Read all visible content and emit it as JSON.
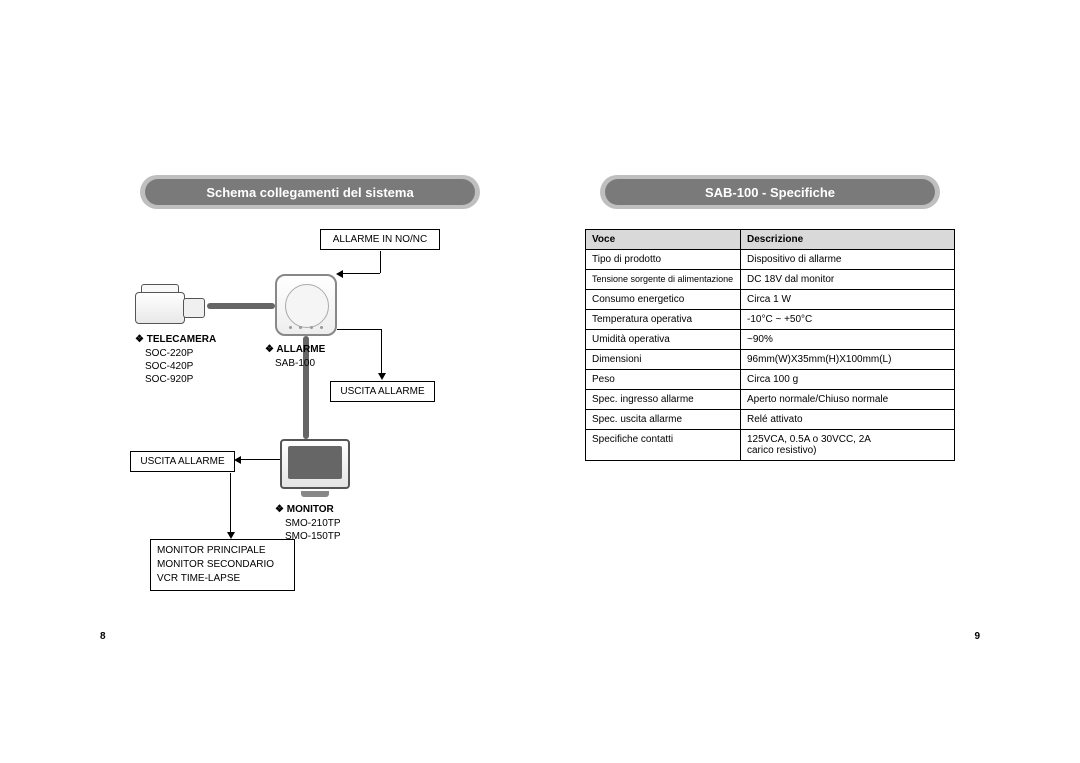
{
  "tabs": {
    "left": "I",
    "right": "I"
  },
  "left_page": {
    "title": "Schema collegamenti del sistema",
    "page_num": "8",
    "labels": {
      "alarm_in": "ALLARME IN NO/NC",
      "telecamera_h": "❖ TELECAMERA",
      "telecamera_models": "SOC-220P\nSOC-420P\nSOC-920P",
      "allarme_h": "❖ ALLARME",
      "allarme_model": "SAB-100",
      "uscita_allarme_top": "USCITA ALLARME",
      "uscita_allarme_left": "USCITA ALLARME",
      "monitor_h": "❖ MONITOR",
      "monitor_models": "SMO-210TP\nSMO-150TP",
      "monitor_list": "MONITOR PRINCIPALE\nMONITOR SECONDARIO\nVCR TIME-LAPSE"
    }
  },
  "right_page": {
    "title": "SAB-100 - Specifiche",
    "page_num": "9",
    "table": {
      "header_voce": "Voce",
      "header_desc": "Descrizione",
      "rows": [
        {
          "voce": "Tipo di prodotto",
          "desc": "Dispositivo di allarme"
        },
        {
          "voce": "Tensione sorgente di alimentazione",
          "desc": "DC 18V dal monitor",
          "small": true
        },
        {
          "voce": "Consumo energetico",
          "desc": "Circa 1 W"
        },
        {
          "voce": "Temperatura operativa",
          "desc": "-10°C ~ +50°C"
        },
        {
          "voce": "Umidità operativa",
          "desc": "~90%"
        },
        {
          "voce": "Dimensioni",
          "desc": "96mm(W)X35mm(H)X100mm(L)"
        },
        {
          "voce": "Peso",
          "desc": "Circa 100 g"
        },
        {
          "voce": "Spec. ingresso allarme",
          "desc": "Aperto normale/Chiuso normale"
        },
        {
          "voce": "Spec. uscita allarme",
          "desc": "Relé attivato"
        },
        {
          "voce": "Specifiche contatti",
          "desc": "125VCA, 0.5A o 30VCC, 2A\ncarico resistivo)"
        }
      ]
    }
  },
  "colors": {
    "border_gray": "#c8c8c8",
    "pill_outer": "#bfbfbf",
    "pill_inner": "#7a7a7a",
    "table_header": "#d9d9d9"
  }
}
